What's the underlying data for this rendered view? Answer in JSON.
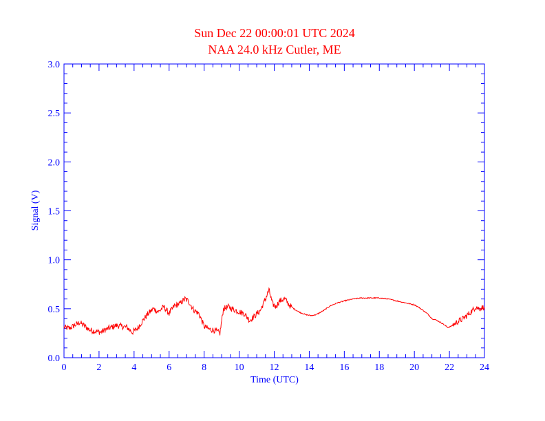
{
  "colors": {
    "title": "#ff0000",
    "axis": "#0000ff",
    "series": "#ff0000",
    "background": "#ffffff"
  },
  "chart_data": {
    "type": "line",
    "title": "Sun Dec 22 00:00:01 UTC 2024",
    "subtitle": "NAA 24.0 kHz Cutler, ME",
    "xlabel": "Time (UTC)",
    "ylabel": "Signal (V)",
    "xlim": [
      0,
      24
    ],
    "ylim": [
      0,
      3.0
    ],
    "xticks": [
      0,
      2,
      4,
      6,
      8,
      10,
      12,
      14,
      16,
      18,
      20,
      22,
      24
    ],
    "yticks": [
      "0.0",
      "0.5",
      "1.0",
      "1.5",
      "2.0",
      "2.5",
      "3.0"
    ],
    "grid": false,
    "series": [
      {
        "x": [
          0,
          0.3,
          0.6,
          0.9,
          1.2,
          1.5,
          1.8,
          2.1,
          2.4,
          2.7,
          3.0,
          3.3,
          3.6,
          3.9,
          4.2,
          4.5,
          4.8,
          5.1,
          5.4,
          5.7,
          6.0,
          6.3,
          6.6,
          6.9,
          7.1,
          7.4,
          7.7,
          8.0,
          8.3,
          8.6,
          8.9,
          9.1,
          9.4,
          9.7,
          10.0,
          10.3,
          10.6,
          10.9,
          11.2,
          11.5,
          11.7,
          11.9,
          12.1,
          12.3,
          12.6,
          12.9,
          13.2,
          13.5,
          13.8,
          14.1,
          14.4,
          14.8,
          15.2,
          15.6,
          16.0,
          16.5,
          17.0,
          17.5,
          18.0,
          18.5,
          19.0,
          19.5,
          20.0,
          20.3,
          20.6,
          20.8,
          21.0,
          21.3,
          21.6,
          21.9,
          22.1,
          22.4,
          22.7,
          23.0,
          23.3,
          23.5,
          23.7,
          24.0
        ],
        "y": [
          0.31,
          0.3,
          0.33,
          0.36,
          0.32,
          0.28,
          0.27,
          0.26,
          0.29,
          0.31,
          0.33,
          0.32,
          0.31,
          0.26,
          0.3,
          0.38,
          0.45,
          0.5,
          0.47,
          0.52,
          0.45,
          0.53,
          0.55,
          0.6,
          0.58,
          0.49,
          0.45,
          0.32,
          0.29,
          0.28,
          0.25,
          0.5,
          0.52,
          0.49,
          0.47,
          0.45,
          0.38,
          0.43,
          0.48,
          0.6,
          0.69,
          0.55,
          0.52,
          0.58,
          0.6,
          0.53,
          0.49,
          0.46,
          0.44,
          0.43,
          0.44,
          0.48,
          0.53,
          0.56,
          0.58,
          0.6,
          0.61,
          0.61,
          0.61,
          0.6,
          0.58,
          0.56,
          0.54,
          0.51,
          0.47,
          0.44,
          0.4,
          0.38,
          0.35,
          0.31,
          0.32,
          0.36,
          0.39,
          0.43,
          0.48,
          0.52,
          0.5,
          0.52
        ]
      }
    ]
  }
}
